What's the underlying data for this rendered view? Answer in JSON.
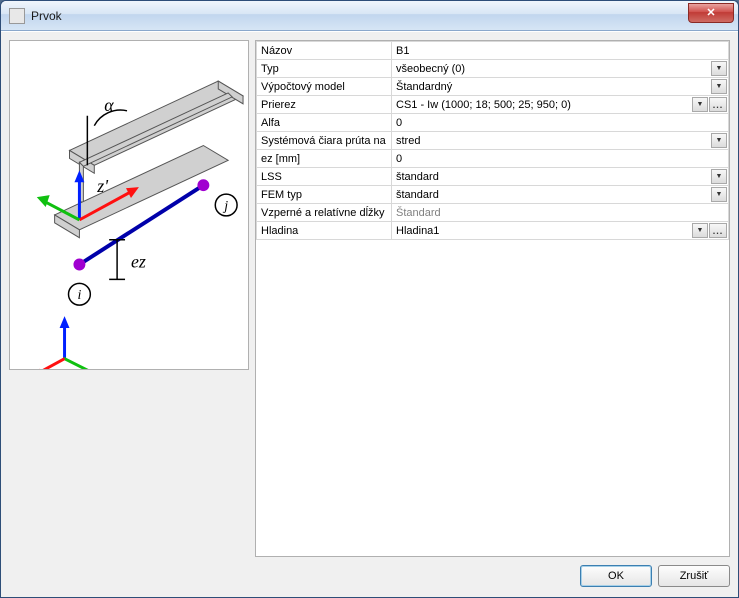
{
  "window": {
    "title": "Prvok",
    "close_glyph": "✕"
  },
  "properties": [
    {
      "key": "nazov",
      "label": "Názov",
      "value": "B1",
      "dropdown": false,
      "more": false
    },
    {
      "key": "typ",
      "label": "Typ",
      "value": "všeobecný (0)",
      "dropdown": true,
      "more": false
    },
    {
      "key": "model",
      "label": "Výpočtový model",
      "value": "Štandardný",
      "dropdown": true,
      "more": false
    },
    {
      "key": "prierez",
      "label": "Prierez",
      "value": "CS1 - Iw (1000; 18; 500; 25; 950; 0)",
      "dropdown": true,
      "more": true
    },
    {
      "key": "alfa",
      "label": "Alfa",
      "value": "0",
      "dropdown": false,
      "more": false
    },
    {
      "key": "sys",
      "label": "Systémová čiara prúta na",
      "value": "stred",
      "dropdown": true,
      "more": false
    },
    {
      "key": "ez",
      "label": "ez [mm]",
      "value": "0",
      "dropdown": false,
      "more": false
    },
    {
      "key": "lss",
      "label": "LSS",
      "value": "štandard",
      "dropdown": true,
      "more": false
    },
    {
      "key": "fem",
      "label": "FEM typ",
      "value": "štandard",
      "dropdown": true,
      "more": false
    },
    {
      "key": "vzp",
      "label": "Vzperné a relatívne dĺžky",
      "value": "Štandard",
      "dropdown": false,
      "more": false,
      "disabled": true
    },
    {
      "key": "hladina",
      "label": "Hladina",
      "value": "Hladina1",
      "dropdown": true,
      "more": true
    }
  ],
  "diagram": {
    "labels": {
      "alpha": "α",
      "z": "z'",
      "ez": "ez",
      "i": "i",
      "j": "j"
    },
    "colors": {
      "beam_fill": "#d0d0d0",
      "beam_stroke": "#555555",
      "bar": "#0000aa",
      "node": "#a000d0",
      "axis_z": "#0020ff",
      "axis_x": "#ff1010",
      "axis_y": "#10c010",
      "guide": "#000000"
    }
  },
  "buttons": {
    "ok": "OK",
    "cancel": "Zrušiť"
  }
}
